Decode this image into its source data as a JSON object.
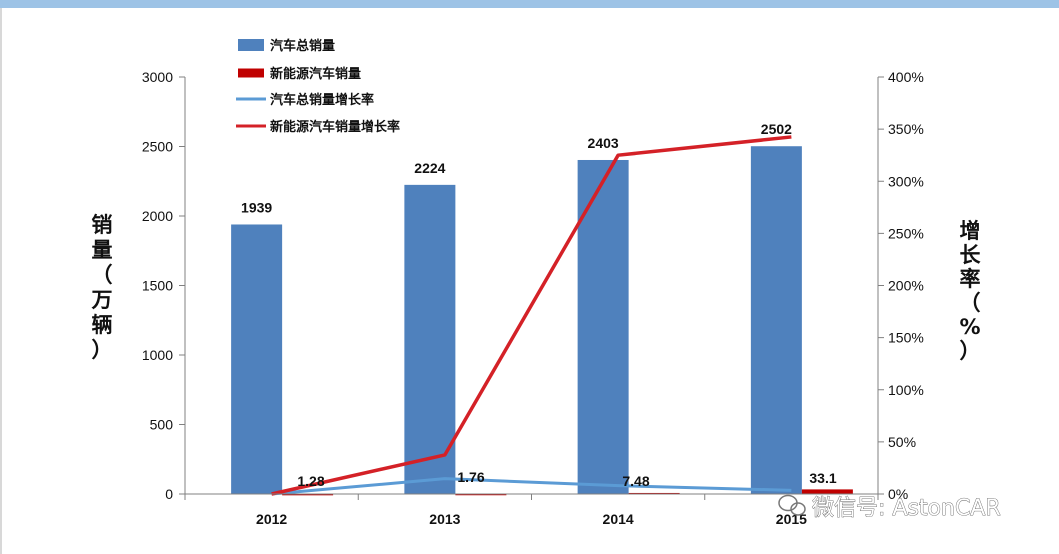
{
  "colors": {
    "top_band": "#9dc3e6",
    "bar_total": "#4f81bd",
    "bar_nev": "#c00000",
    "line_total_growth": "#5b9bd5",
    "line_nev_growth": "#d42127",
    "axis": "#808080"
  },
  "watermark": {
    "icon": "wechat-icon",
    "text": "微信号: AstonCAR"
  },
  "chart_data": {
    "type": "bar",
    "categories": [
      "2012",
      "2013",
      "2014",
      "2015"
    ],
    "categories_display": [
      "2012",
      "2013",
      "2014",
      "2015"
    ],
    "ylabel": "销量（万辆）",
    "y2label": "增长率（%）",
    "ylim": [
      0,
      3000
    ],
    "yticks": [
      0,
      500,
      1000,
      1500,
      2000,
      2500,
      3000
    ],
    "y2lim": [
      0,
      400
    ],
    "y2ticks": [
      "0%",
      "50%",
      "100%",
      "150%",
      "200%",
      "250%",
      "300%",
      "350%",
      "400%"
    ],
    "legend_position": "top-left",
    "series": [
      {
        "name": "汽车总销量",
        "kind": "bar",
        "axis": "left",
        "values": [
          1939,
          2224,
          2403,
          2502
        ],
        "labels": [
          "1939",
          "2224",
          "2403",
          "2502"
        ]
      },
      {
        "name": "新能源汽车销量",
        "kind": "bar",
        "axis": "left",
        "values": [
          1.28,
          1.76,
          7.48,
          33.1
        ],
        "labels": [
          "1.28",
          "1.76",
          "7.48",
          "33.1"
        ]
      },
      {
        "name": "汽车总销量增长率",
        "kind": "line",
        "axis": "right",
        "values": [
          0,
          14.7,
          8.0,
          3.5
        ]
      },
      {
        "name": "新能源汽车销量增长率",
        "kind": "line",
        "axis": "right",
        "values": [
          0,
          37.5,
          325,
          342.5
        ]
      }
    ]
  }
}
